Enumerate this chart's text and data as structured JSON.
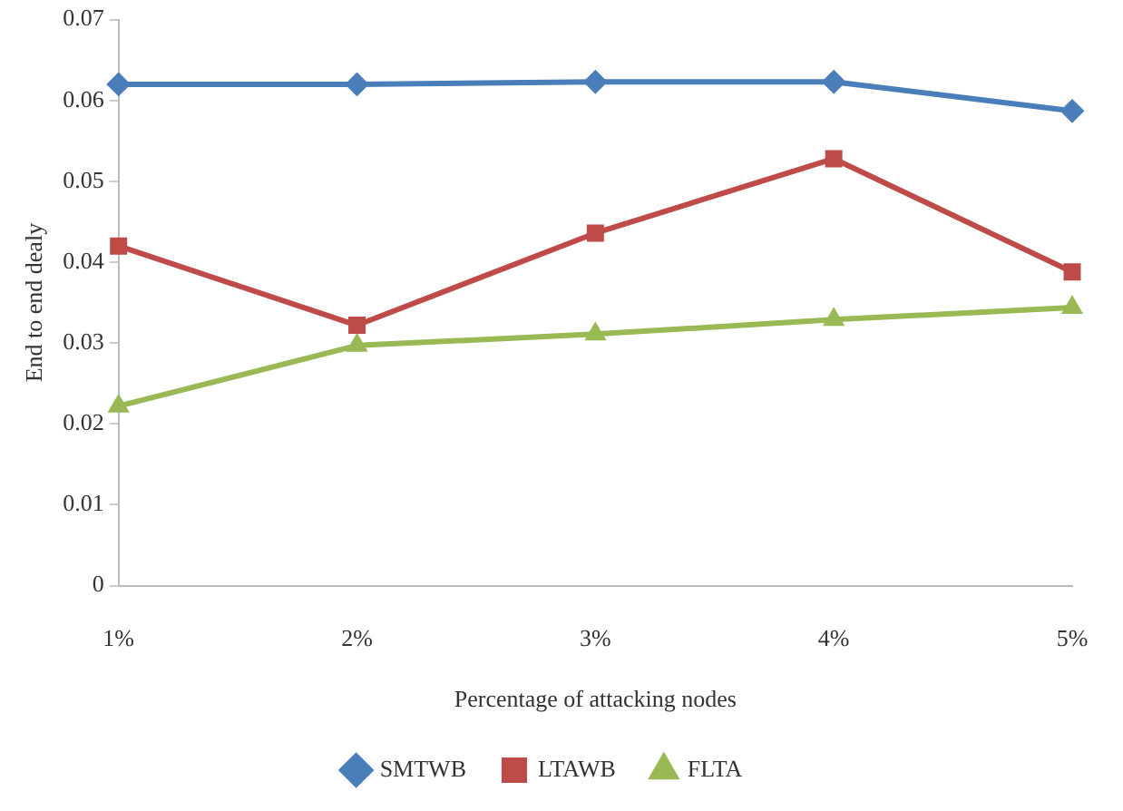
{
  "chart_data": {
    "type": "line",
    "xlabel": "Percentage of attacking nodes",
    "ylabel": "End to end dealy",
    "categories": [
      "1%",
      "2%",
      "3%",
      "4%",
      "5%"
    ],
    "series": [
      {
        "name": "SMTWB",
        "color": "#4a7ebb",
        "marker": "diamond",
        "values": [
          0.062,
          0.062,
          0.0623,
          0.0623,
          0.0587
        ]
      },
      {
        "name": "LTAWB",
        "color": "#be4b48",
        "marker": "square",
        "values": [
          0.042,
          0.0322,
          0.0436,
          0.0528,
          0.0388
        ]
      },
      {
        "name": "FLTA",
        "color": "#98b954",
        "marker": "triangle",
        "values": [
          0.0222,
          0.0297,
          0.0311,
          0.0329,
          0.0344
        ]
      }
    ],
    "ylim": [
      0,
      0.07
    ],
    "yticks": [
      0,
      0.01,
      0.02,
      0.03,
      0.04,
      0.05,
      0.06,
      0.07
    ],
    "grid": false,
    "legend": "bottom",
    "line_style": "solid"
  }
}
